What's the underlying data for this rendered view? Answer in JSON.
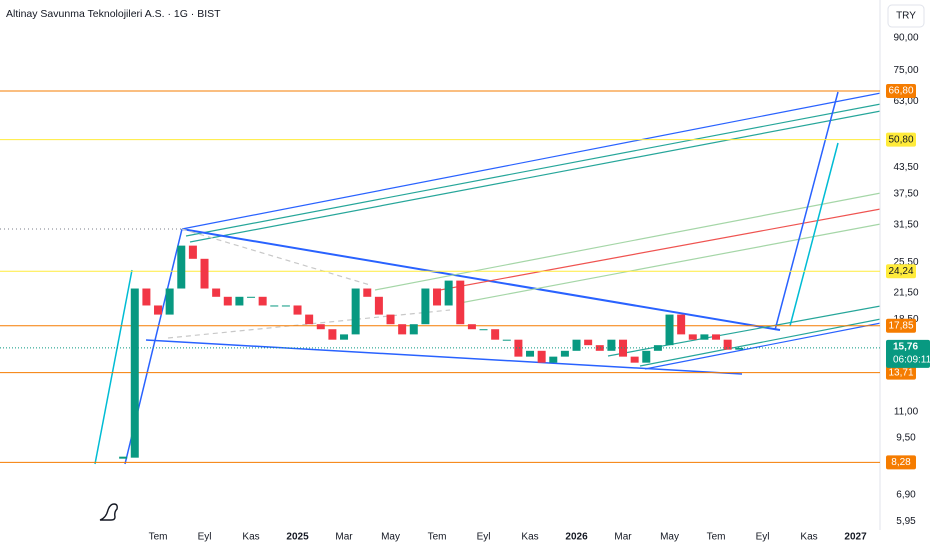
{
  "chart_data": {
    "type": "candlestick",
    "title": "Altinay Savunma Teknolojileri A.S. · 1G · BIST",
    "currency": "TRY",
    "categories": [
      null,
      null,
      null,
      null,
      null,
      null,
      null,
      null,
      null,
      null,
      null,
      null,
      null,
      "Tem",
      null,
      null,
      null,
      "Eyl",
      null,
      null,
      null,
      "Kas",
      null,
      null,
      null,
      "2025",
      null,
      null,
      null,
      "Mar",
      null,
      null,
      null,
      "May",
      null,
      null,
      null,
      "Tem",
      null,
      null,
      null,
      "Eyl",
      null,
      null,
      null,
      "Kas",
      null,
      null,
      null,
      "2026",
      null,
      null,
      null,
      "Mar",
      null,
      null,
      null,
      "May",
      null,
      null,
      null,
      "Tem",
      null,
      null,
      null,
      "Eyl",
      null,
      null,
      null,
      "Kas",
      null,
      null,
      null,
      "2027",
      null,
      null
    ],
    "values": [
      null,
      null,
      null,
      null,
      null,
      null,
      null,
      null,
      null,
      null,
      8.5,
      22,
      20,
      19,
      22,
      28,
      26,
      22,
      21,
      20,
      21,
      21,
      20,
      20,
      20,
      19,
      18,
      17.5,
      16.5,
      17,
      22,
      21,
      19,
      18,
      17,
      18,
      22,
      20,
      23,
      18,
      17.5,
      17.5,
      16.5,
      16.5,
      15,
      15.5,
      14.5,
      15,
      15.5,
      16.5,
      16,
      15.5,
      16.5,
      15,
      14.5,
      15.5,
      16,
      19,
      17,
      16.5,
      17,
      16.5,
      15.6,
      15.76,
      null,
      null,
      null,
      null,
      null,
      null,
      null,
      null,
      null,
      null,
      null,
      null
    ],
    "up_color": "#089981",
    "down_color": "#f23645",
    "log_scale": true,
    "grid": false,
    "ylim": [
      5.66,
      111.4
    ],
    "yticks": [
      {
        "value": 90,
        "label": "90,00"
      },
      {
        "value": 75,
        "label": "75,00"
      },
      {
        "value": 63,
        "label": "63,00"
      },
      {
        "value": 43.5,
        "label": "43,50"
      },
      {
        "value": 37.5,
        "label": "37,50"
      },
      {
        "value": 31.5,
        "label": "31,50"
      },
      {
        "value": 25.5,
        "label": "25,50"
      },
      {
        "value": 21.5,
        "label": "21,50"
      },
      {
        "value": 18.5,
        "label": "18,50"
      },
      {
        "value": 11,
        "label": "11,00"
      },
      {
        "value": 9.5,
        "label": "9,50"
      },
      {
        "value": 6.9,
        "label": "6,90"
      },
      {
        "value": 5.95,
        "label": "5,95"
      }
    ],
    "price_levels": [
      {
        "value": 66.8,
        "label": "66,80",
        "color": "#f57c00",
        "text_color": "#ffffff"
      },
      {
        "value": 50.8,
        "label": "50,80",
        "color": "#ffeb3b",
        "text_color": "#131722"
      },
      {
        "value": 24.24,
        "label": "24,24",
        "color": "#ffeb3b",
        "text_color": "#131722"
      },
      {
        "value": 17.85,
        "label": "17,85",
        "color": "#f57c00",
        "text_color": "#ffffff"
      },
      {
        "value": 13.71,
        "label": "13,71",
        "color": "#f57c00",
        "text_color": "#ffffff"
      },
      {
        "value": 8.28,
        "label": "8,28",
        "color": "#f57c00",
        "text_color": "#ffffff"
      }
    ],
    "last_price": {
      "value": 15.76,
      "label": "15,76",
      "color": "#089981"
    },
    "countdown": "06:09:11"
  }
}
